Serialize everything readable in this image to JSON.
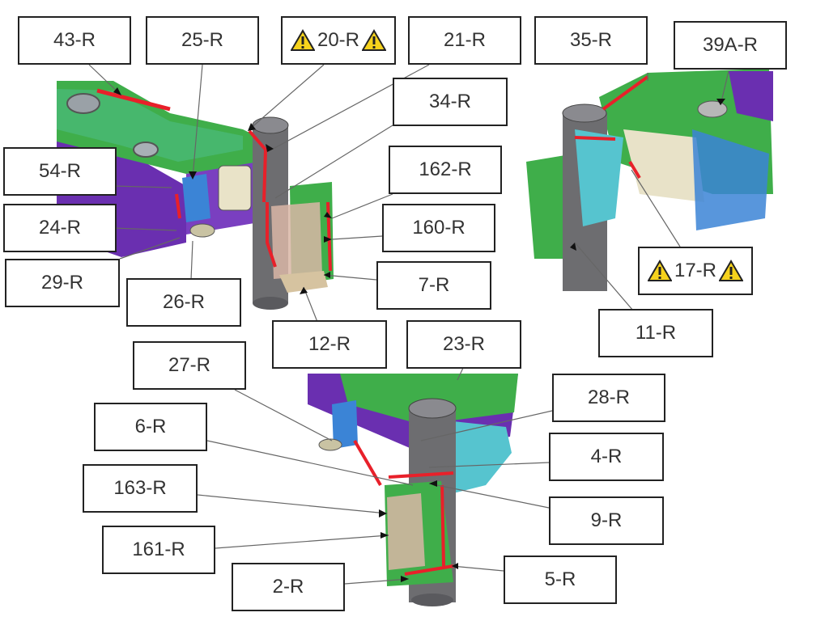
{
  "labels": [
    {
      "id": "43-R",
      "text": "43-R"
    },
    {
      "id": "25-R",
      "text": "25-R"
    },
    {
      "id": "20-R",
      "text": "20-R",
      "warning": true
    },
    {
      "id": "21-R",
      "text": "21-R"
    },
    {
      "id": "35-R",
      "text": "35-R"
    },
    {
      "id": "39A-R",
      "text": "39A-R"
    },
    {
      "id": "34-R",
      "text": "34-R"
    },
    {
      "id": "54-R",
      "text": "54-R"
    },
    {
      "id": "162-R",
      "text": "162-R"
    },
    {
      "id": "24-R",
      "text": "24-R"
    },
    {
      "id": "160-R",
      "text": "160-R"
    },
    {
      "id": "29-R",
      "text": "29-R"
    },
    {
      "id": "26-R",
      "text": "26-R"
    },
    {
      "id": "7-R",
      "text": "7-R"
    },
    {
      "id": "17-R",
      "text": "17-R",
      "warning": true
    },
    {
      "id": "12-R",
      "text": "12-R"
    },
    {
      "id": "23-R",
      "text": "23-R"
    },
    {
      "id": "11-R",
      "text": "11-R"
    },
    {
      "id": "27-R",
      "text": "27-R"
    },
    {
      "id": "28-R",
      "text": "28-R"
    },
    {
      "id": "6-R",
      "text": "6-R"
    },
    {
      "id": "4-R",
      "text": "4-R"
    },
    {
      "id": "163-R",
      "text": "163-R"
    },
    {
      "id": "9-R",
      "text": "9-R"
    },
    {
      "id": "161-R",
      "text": "161-R"
    },
    {
      "id": "5-R",
      "text": "5-R"
    },
    {
      "id": "2-R",
      "text": "2-R"
    }
  ],
  "colors": {
    "weld_seam": "#e8202a",
    "arrow": "#111111",
    "warning_fill": "#f6d21c",
    "part_green": "#3fae4a",
    "part_purple": "#6a2fb0",
    "part_cyan": "#56c4cf",
    "part_gray": "#6d6d70"
  },
  "icons": {
    "warning": "warning-triangle-icon"
  }
}
